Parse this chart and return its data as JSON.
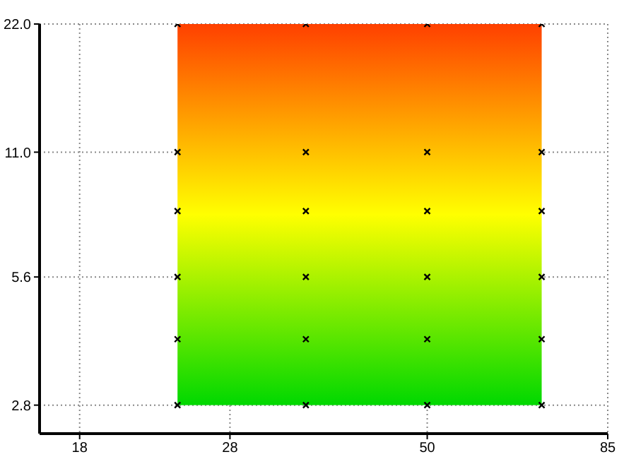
{
  "chart_data": {
    "type": "scatter",
    "log": "xy",
    "grid": true,
    "marker": "cross",
    "xlim": [
      16,
      85
    ],
    "xticks": [
      18,
      28,
      50,
      85
    ],
    "ylim": [
      2.4,
      22
    ],
    "yticks": [
      {
        "value": 2.8,
        "label": "2.8"
      },
      {
        "value": 5.6,
        "label": "5.6"
      },
      {
        "value": 11,
        "label": "11.0"
      },
      {
        "value": 22,
        "label": "22.0"
      }
    ],
    "series": [
      {
        "color": "#000000",
        "x": [
          24,
          24,
          24,
          24,
          24,
          24,
          35,
          35,
          35,
          35,
          35,
          35,
          50,
          50,
          50,
          50,
          50,
          50,
          70,
          70,
          70,
          70,
          70,
          70
        ],
        "values": [
          2.8,
          4,
          5.6,
          8,
          11,
          22,
          2.8,
          4,
          5.6,
          8,
          11,
          22,
          2.8,
          4,
          5.6,
          8,
          11,
          22,
          2.8,
          4,
          5.6,
          8,
          11,
          22
        ]
      }
    ]
  }
}
